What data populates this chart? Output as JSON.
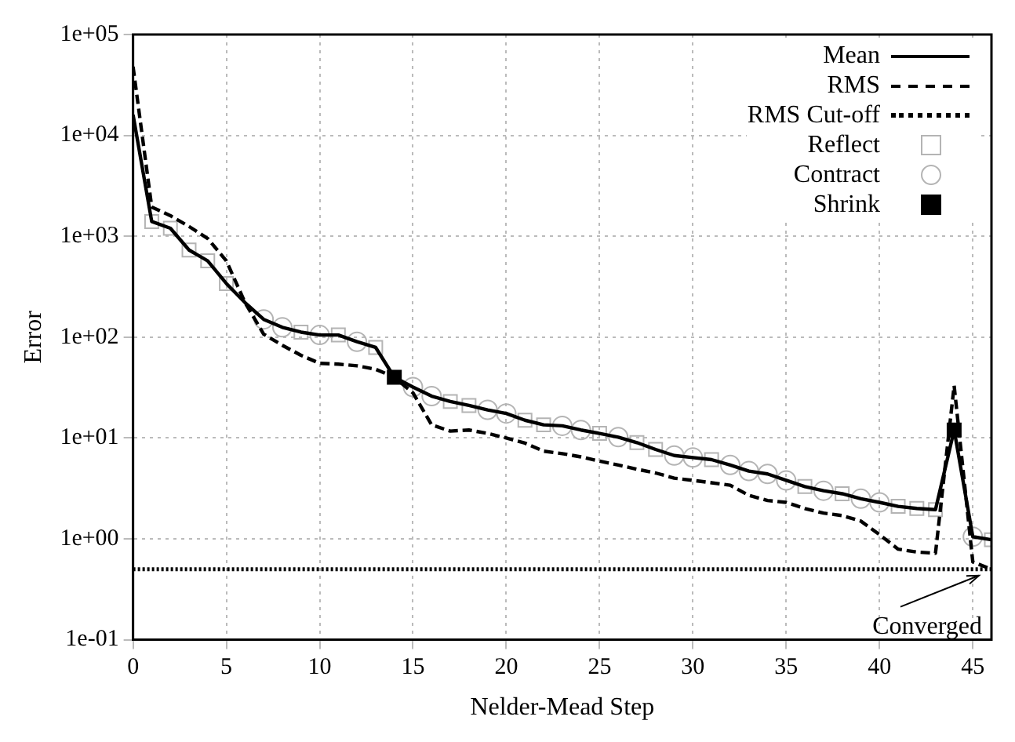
{
  "chart_data": {
    "type": "line",
    "xlabel": "Nelder-Mead Step",
    "ylabel": "Error",
    "log": "y",
    "grid": true,
    "legend": "top right",
    "xlim": [
      0,
      46
    ],
    "xticks": [
      0,
      5,
      10,
      15,
      20,
      25,
      30,
      35,
      40,
      45
    ],
    "ylim": [
      0.1,
      100000
    ],
    "yticks": [
      {
        "value": 0.1,
        "label": "1e-01"
      },
      {
        "value": 1,
        "label": "1e+00"
      },
      {
        "value": 10,
        "label": "1e+01"
      },
      {
        "value": 100,
        "label": "1e+02"
      },
      {
        "value": 1000,
        "label": "1e+03"
      },
      {
        "value": 10000,
        "label": "1e+04"
      },
      {
        "value": 100000,
        "label": "1e+05"
      }
    ],
    "x": [
      0,
      1,
      2,
      3,
      4,
      5,
      6,
      7,
      8,
      9,
      10,
      11,
      12,
      13,
      14,
      15,
      16,
      17,
      18,
      19,
      20,
      21,
      22,
      23,
      24,
      25,
      26,
      27,
      28,
      29,
      30,
      31,
      32,
      33,
      34,
      35,
      36,
      37,
      38,
      39,
      40,
      41,
      42,
      43,
      44,
      45,
      46
    ],
    "series": [
      {
        "name": "Mean",
        "color": "#000000",
        "line_style": "solid",
        "marker": "none",
        "values": [
          16000,
          1400,
          1200,
          730,
          570,
          340,
          220,
          150,
          125,
          112,
          105,
          105,
          90,
          79,
          40,
          32,
          26,
          23,
          21,
          19,
          17.5,
          15,
          13.5,
          13.2,
          12,
          11.1,
          10.2,
          9,
          7.7,
          6.7,
          6.4,
          6.1,
          5.4,
          4.7,
          4.4,
          3.8,
          3.3,
          3.0,
          2.8,
          2.5,
          2.3,
          2.1,
          2.0,
          1.95,
          12,
          1.05,
          0.98
        ]
      },
      {
        "name": "RMS",
        "color": "#000000",
        "line_style": "dashed",
        "marker": "none",
        "values": [
          48000,
          1950,
          1600,
          1250,
          950,
          570,
          220,
          107,
          83,
          66,
          55,
          54,
          52,
          48,
          40,
          28,
          13.5,
          11.7,
          12,
          11.1,
          10,
          8.9,
          7.4,
          7,
          6.5,
          5.9,
          5.4,
          4.9,
          4.5,
          4,
          3.8,
          3.6,
          3.4,
          2.7,
          2.4,
          2.3,
          2.0,
          1.8,
          1.7,
          1.5,
          1.1,
          0.79,
          0.74,
          0.72,
          33,
          0.59,
          0.5
        ]
      },
      {
        "name": "RMS Cut-off",
        "color": "#000000",
        "line_style": "dotted",
        "marker": "none",
        "x": [
          0,
          46
        ],
        "values": [
          0.5,
          0.5
        ]
      },
      {
        "name": "Reflect",
        "type": "scatter",
        "color": "#b4b4b4",
        "marker": "square",
        "x": [
          1,
          2,
          3,
          4,
          5,
          9,
          11,
          13,
          17,
          18,
          21,
          22,
          25,
          27,
          28,
          31,
          36,
          38,
          41,
          42,
          43,
          46
        ],
        "values": [
          1400,
          1200,
          730,
          570,
          340,
          112,
          105,
          79,
          23,
          21,
          15,
          13.5,
          11.1,
          9,
          7.7,
          6.1,
          3.3,
          2.8,
          2.1,
          2.0,
          1.95,
          0.98
        ]
      },
      {
        "name": "Contract",
        "type": "scatter",
        "color": "#b4b4b4",
        "marker": "circle",
        "x": [
          7,
          8,
          10,
          12,
          15,
          16,
          19,
          20,
          23,
          24,
          26,
          29,
          30,
          32,
          33,
          34,
          35,
          37,
          39,
          40,
          45
        ],
        "values": [
          150,
          125,
          105,
          90,
          32,
          26,
          19,
          17.5,
          13.2,
          12,
          10.2,
          6.7,
          6.4,
          5.4,
          4.7,
          4.4,
          3.8,
          3.0,
          2.5,
          2.3,
          1.05
        ]
      },
      {
        "name": "Shrink",
        "type": "scatter",
        "color": "#000000",
        "marker": "square",
        "x": [
          14,
          44
        ],
        "values": [
          40,
          12
        ]
      }
    ],
    "annotations": [
      {
        "text": "Converged",
        "x": 46,
        "y": 0.5
      }
    ]
  }
}
